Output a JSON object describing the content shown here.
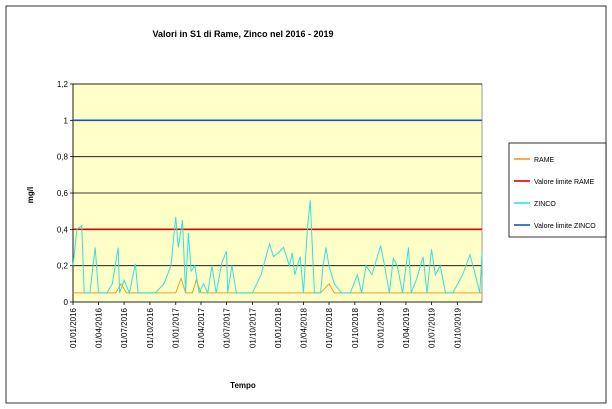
{
  "chart_data": {
    "type": "line",
    "title": "Valori in S1 di Rame, Zinco nel 2016 - 2019",
    "x_label": "Tempo",
    "y_label": "mg/l",
    "xlim": [
      "2016-01-01",
      "2019-12-28"
    ],
    "xticks": [
      {
        "value": "2016-01-01",
        "label": "01/01/2016"
      },
      {
        "value": "2016-04-01",
        "label": "01/04/2016"
      },
      {
        "value": "2016-07-01",
        "label": "01/07/2016"
      },
      {
        "value": "2016-10-01",
        "label": "01/10/2016"
      },
      {
        "value": "2017-01-01",
        "label": "01/01/2017"
      },
      {
        "value": "2017-04-01",
        "label": "01/04/2017"
      },
      {
        "value": "2017-07-01",
        "label": "01/07/2017"
      },
      {
        "value": "2017-10-01",
        "label": "01/10/2017"
      },
      {
        "value": "2018-01-01",
        "label": "01/01/2018"
      },
      {
        "value": "2018-04-01",
        "label": "01/04/2018"
      },
      {
        "value": "2018-07-01",
        "label": "01/07/2018"
      },
      {
        "value": "2018-10-01",
        "label": "01/10/2018"
      },
      {
        "value": "2019-01-01",
        "label": "01/01/2019"
      },
      {
        "value": "2019-04-01",
        "label": "01/04/2019"
      },
      {
        "value": "2019-07-01",
        "label": "01/07/2019"
      },
      {
        "value": "2019-10-01",
        "label": "01/10/2019"
      }
    ],
    "ylim": [
      0,
      1.2
    ],
    "yticks": [
      0,
      {
        "value": 0.2,
        "label": "0,2"
      },
      {
        "value": 0.4,
        "label": "0,4"
      },
      {
        "value": 0.6,
        "label": "0,6"
      },
      {
        "value": 0.8,
        "label": "0,8"
      },
      1,
      {
        "value": 1.2,
        "label": "1,2"
      }
    ],
    "grid": true,
    "legend": "right",
    "series": [
      {
        "name": "RAME",
        "color": "#e8a020",
        "x": [
          "2016-01-01",
          "2016-06-01",
          "2016-06-20",
          "2016-07-10",
          "2017-01-01",
          "2017-01-20",
          "2017-02-05",
          "2017-03-01",
          "2017-03-15",
          "2017-04-01",
          "2018-06-01",
          "2018-07-01",
          "2018-07-20",
          "2019-12-28"
        ],
        "values": [
          0.05,
          0.05,
          0.1,
          0.05,
          0.05,
          0.13,
          0.05,
          0.05,
          0.12,
          0.05,
          0.05,
          0.1,
          0.05,
          0.05
        ]
      },
      {
        "name": "Valore limite RAME",
        "color": "#e00000",
        "x": [
          "2016-01-01",
          "2019-12-28"
        ],
        "values": [
          0.4,
          0.4
        ]
      },
      {
        "name": "ZINCO",
        "color": "#33e0e0",
        "x": [
          "2016-01-01",
          "2016-01-15",
          "2016-02-01",
          "2016-02-10",
          "2016-03-01",
          "2016-03-20",
          "2016-04-01",
          "2016-05-01",
          "2016-05-20",
          "2016-06-10",
          "2016-06-15",
          "2016-07-01",
          "2016-07-20",
          "2016-08-10",
          "2016-08-20",
          "2016-09-20",
          "2016-10-20",
          "2016-11-20",
          "2016-12-15",
          "2017-01-01",
          "2017-01-10",
          "2017-01-25",
          "2017-02-05",
          "2017-02-15",
          "2017-02-25",
          "2017-03-10",
          "2017-03-25",
          "2017-04-10",
          "2017-04-25",
          "2017-05-10",
          "2017-05-25",
          "2017-06-15",
          "2017-07-01",
          "2017-07-05",
          "2017-07-20",
          "2017-08-05",
          "2017-09-01",
          "2017-10-01",
          "2017-11-01",
          "2017-12-01",
          "2017-12-15",
          "2018-01-01",
          "2018-01-20",
          "2018-02-10",
          "2018-02-20",
          "2018-03-01",
          "2018-03-20",
          "2018-04-01",
          "2018-04-15",
          "2018-04-25",
          "2018-05-10",
          "2018-06-01",
          "2018-06-10",
          "2018-06-20",
          "2018-07-01",
          "2018-07-20",
          "2018-08-15",
          "2018-09-15",
          "2018-10-10",
          "2018-10-25",
          "2018-11-10",
          "2018-12-01",
          "2018-12-20",
          "2019-01-01",
          "2019-01-15",
          "2019-02-01",
          "2019-02-15",
          "2019-03-01",
          "2019-03-20",
          "2019-04-10",
          "2019-04-20",
          "2019-05-10",
          "2019-06-01",
          "2019-06-15",
          "2019-07-01",
          "2019-07-15",
          "2019-08-01",
          "2019-08-20",
          "2019-09-15",
          "2019-10-20",
          "2019-11-15",
          "2019-12-01",
          "2019-12-20",
          "2019-12-28"
        ],
        "values": [
          0.2,
          0.4,
          0.42,
          0.05,
          0.05,
          0.3,
          0.05,
          0.05,
          0.1,
          0.3,
          0.05,
          0.12,
          0.05,
          0.21,
          0.05,
          0.05,
          0.05,
          0.1,
          0.2,
          0.47,
          0.3,
          0.45,
          0.05,
          0.38,
          0.17,
          0.2,
          0.05,
          0.1,
          0.05,
          0.2,
          0.05,
          0.22,
          0.28,
          0.05,
          0.2,
          0.05,
          0.05,
          0.05,
          0.15,
          0.32,
          0.25,
          0.27,
          0.3,
          0.2,
          0.27,
          0.15,
          0.25,
          0.05,
          0.4,
          0.56,
          0.05,
          0.05,
          0.2,
          0.3,
          0.2,
          0.1,
          0.05,
          0.05,
          0.15,
          0.05,
          0.2,
          0.15,
          0.25,
          0.31,
          0.2,
          0.05,
          0.24,
          0.2,
          0.05,
          0.3,
          0.05,
          0.13,
          0.25,
          0.05,
          0.29,
          0.15,
          0.2,
          0.05,
          0.05,
          0.15,
          0.26,
          0.17,
          0.05,
          0.27
        ]
      },
      {
        "name": "Valore limite ZINCO",
        "color": "#2050c0",
        "x": [
          "2016-01-01",
          "2019-12-28"
        ],
        "values": [
          1,
          1
        ]
      }
    ]
  }
}
